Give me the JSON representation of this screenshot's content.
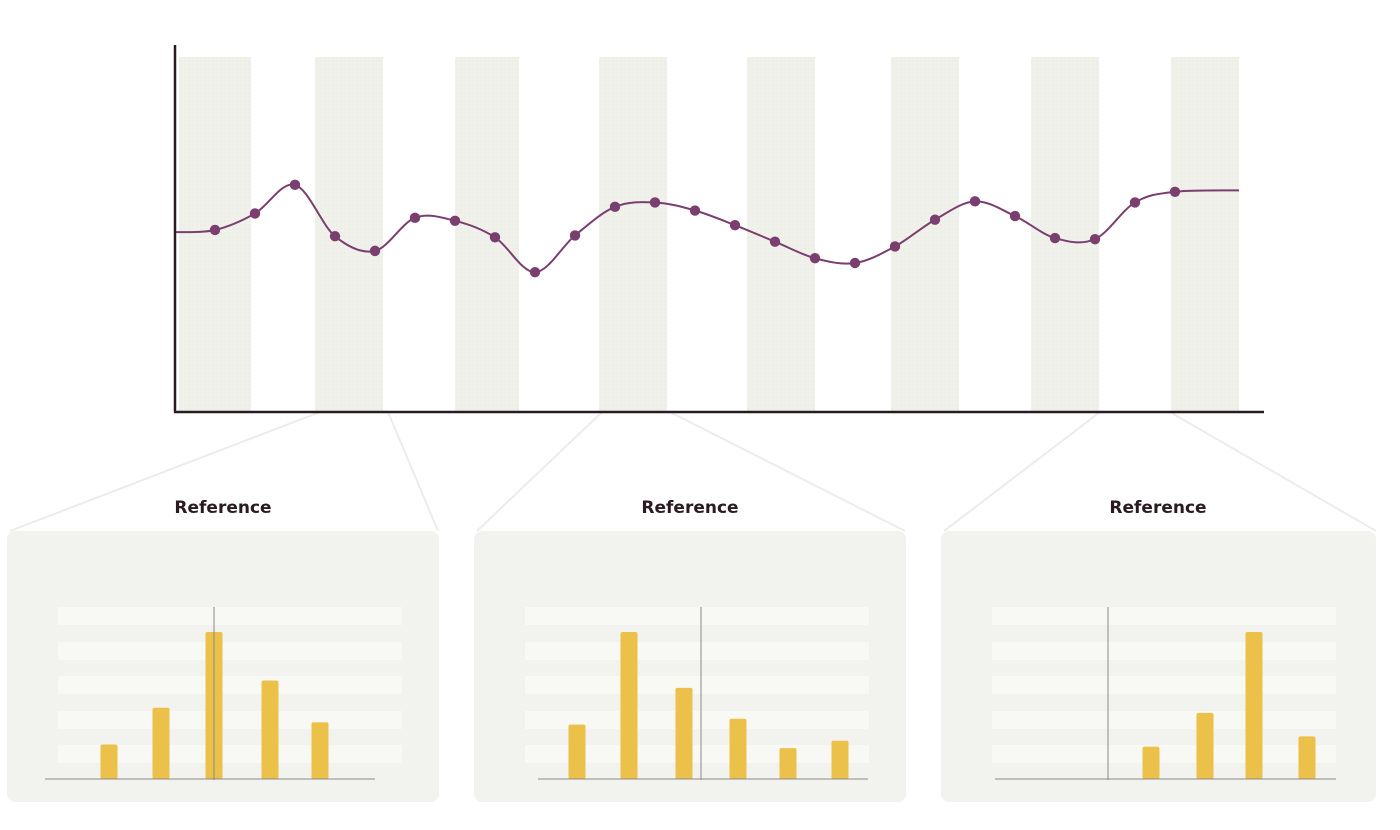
{
  "colors": {
    "line": "#7a3f6e",
    "bar": "#ecc14a",
    "band": "#f1f1ec",
    "panel": "#f2f2ef",
    "stripe": "#f8f8f5",
    "axis": "#2a1a22",
    "connector": "#ececec"
  },
  "chart_data": [
    {
      "type": "line",
      "title": "",
      "xlabel": "",
      "ylabel": "",
      "x": [
        1,
        2,
        3,
        4,
        5,
        6,
        7,
        8,
        9,
        10,
        11,
        12,
        13,
        14,
        15,
        16,
        17,
        18,
        19,
        20,
        21,
        22,
        23,
        24,
        25
      ],
      "ylim": [
        0,
        100
      ],
      "xlim": [
        0,
        26.6
      ],
      "series": [
        {
          "values": [
            49.6,
            54.1,
            61.9,
            47.9,
            43.9,
            52.9,
            52.1,
            47.6,
            38.1,
            48.1,
            55.9,
            57.1,
            54.9,
            50.9,
            46.4,
            41.9,
            40.6,
            45.1,
            52.4,
            57.4,
            53.4,
            47.4,
            47.1,
            57.1,
            60.0
          ]
        }
      ],
      "highlight_bands_x": [
        [
          0.1,
          1.9
        ],
        [
          3.5,
          5.2
        ],
        [
          7.0,
          8.6
        ],
        [
          10.6,
          12.3
        ],
        [
          14.3,
          16.0
        ],
        [
          17.9,
          19.6
        ],
        [
          21.4,
          23.1
        ],
        [
          24.9,
          26.6
        ]
      ],
      "grid": false
    },
    {
      "type": "bar",
      "title": "Reference",
      "values": [
        23.5,
        48.5,
        100,
        67,
        38.5
      ],
      "ylim": [
        0,
        100
      ],
      "reference_line_after_index": 2
    },
    {
      "type": "bar",
      "title": "Reference",
      "values": [
        37,
        100,
        62,
        41,
        21,
        26
      ],
      "ylim": [
        0,
        100
      ],
      "reference_line_after_index": 2
    },
    {
      "type": "bar",
      "title": "Reference",
      "values": [
        22,
        45,
        100,
        29
      ],
      "ylim": [
        0,
        100
      ],
      "reference_line_before_index": 0
    }
  ]
}
